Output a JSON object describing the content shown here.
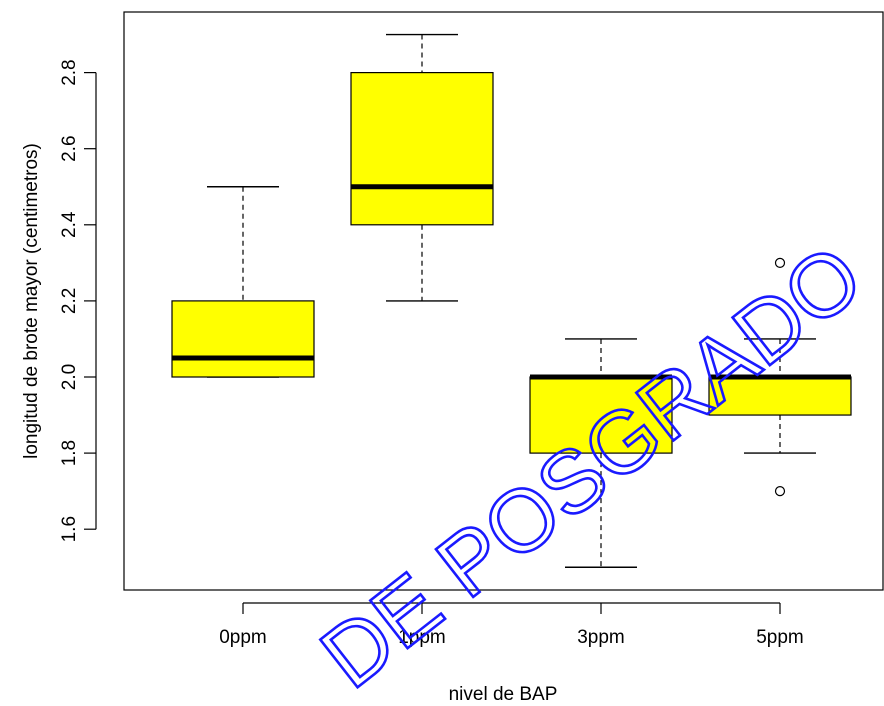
{
  "chart_data": {
    "type": "boxplot",
    "title": "",
    "xlabel": "nivel de BAP",
    "ylabel": "longitud de brote mayor (centimetros)",
    "ylim": [
      1.45,
      2.95
    ],
    "yticks": [
      1.6,
      1.8,
      2.0,
      2.2,
      2.4,
      2.6,
      2.8
    ],
    "ytick_labels": [
      "1.6",
      "1.8",
      "2.0",
      "2.2",
      "2.4",
      "2.6",
      "2.8"
    ],
    "box_color": "#ffff00",
    "grid": false,
    "categories": [
      "0ppm",
      "1ppm",
      "3ppm",
      "5ppm"
    ],
    "boxes": [
      {
        "category": "0ppm",
        "whisker_low": 2.0,
        "q1": 2.0,
        "median": 2.05,
        "q3": 2.2,
        "whisker_high": 2.5,
        "outliers": []
      },
      {
        "category": "1ppm",
        "whisker_low": 2.2,
        "q1": 2.4,
        "median": 2.5,
        "q3": 2.8,
        "whisker_high": 2.9,
        "outliers": []
      },
      {
        "category": "3ppm",
        "whisker_low": 1.5,
        "q1": 1.8,
        "median": 2.0,
        "q3": 2.0,
        "whisker_high": 2.1,
        "outliers": []
      },
      {
        "category": "5ppm",
        "whisker_low": 1.8,
        "q1": 1.9,
        "median": 2.0,
        "q3": 2.0,
        "whisker_high": 2.1,
        "outliers": [
          2.3,
          1.7
        ]
      }
    ]
  },
  "watermark": {
    "text": "DE POSGRADO",
    "color": "#1a1aff"
  }
}
